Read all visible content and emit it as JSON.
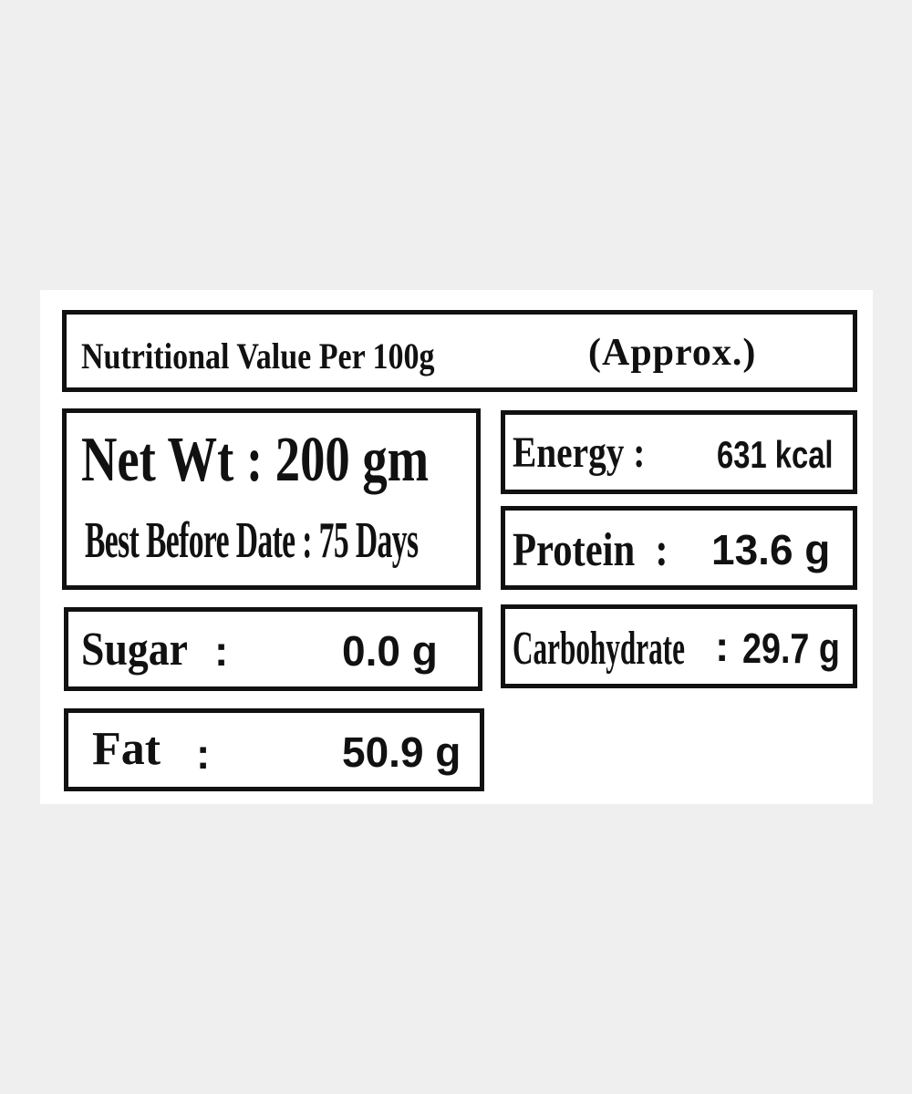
{
  "header": {
    "title": "Nutritional Value Per 100g",
    "note": "(Approx.)"
  },
  "package": {
    "net_wt": "Net Wt : 200 gm",
    "best_before": "Best Before Date : 75 Days"
  },
  "nutrients": {
    "energy": {
      "label": "Energy :",
      "value": "631 kcal"
    },
    "protein": {
      "label": "Protein :",
      "value": "13.6 g"
    },
    "carbohydrate": {
      "label": "Carbohydrate",
      "colon": ":",
      "value": "29.7 g"
    },
    "sugar": {
      "label": "Sugar",
      "colon": ":",
      "value": "0.0 g"
    },
    "fat": {
      "label": "Fat",
      "colon": ":",
      "value": "50.9 g"
    }
  }
}
